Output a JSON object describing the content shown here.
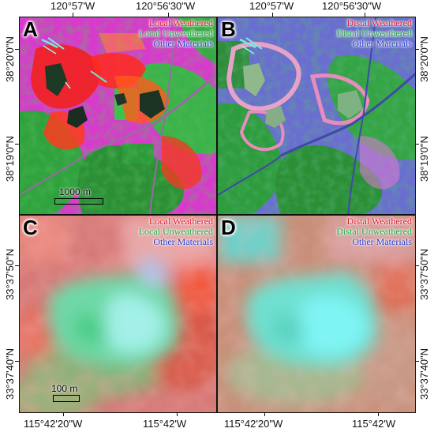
{
  "top_coords": {
    "lon_left": "120°57'W",
    "lon_right": "120°56'30\"W",
    "lat_top": "38°20'0\"N",
    "lat_bottom": "38°19'0\"N"
  },
  "bottom_coords": {
    "lon_left": "115°42'20\"W",
    "lon_right": "115°42'W",
    "lat_top": "33°37'50\"N",
    "lat_bottom": "33°37'40\"N"
  },
  "panels": {
    "a": {
      "letter": "A",
      "legend": [
        "Local Weathered",
        "Local Unweathered",
        "Other Materials"
      ],
      "scale": "1000 m"
    },
    "b": {
      "letter": "B",
      "legend": [
        "Distal Weathered",
        "Distal Unweathered",
        "Other Materials"
      ]
    },
    "c": {
      "letter": "C",
      "legend": [
        "Local Weathered",
        "Local Unweathered",
        "Other Materials"
      ],
      "scale": "100 m"
    },
    "d": {
      "letter": "D",
      "legend": [
        "Distal Weathered",
        "Distal Unweathered",
        "Other Materials"
      ]
    }
  },
  "legend_colors": {
    "red": "#e4152a",
    "green": "#17a43a",
    "blue": "#2437c9"
  }
}
